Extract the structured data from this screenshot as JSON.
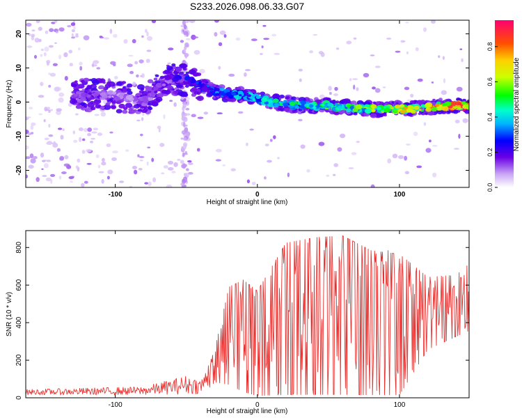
{
  "title": "S233.2026.098.06.33.G07",
  "chart_data": [
    {
      "type": "heatmap",
      "xlabel": "Height of straight line (km)",
      "ylabel": "Frequency (Hz)",
      "xlim": [
        -163,
        149
      ],
      "ylim": [
        -25,
        24
      ],
      "xticks": [
        -100,
        0,
        100
      ],
      "xtick_labels": [
        "-100",
        "0",
        "100"
      ],
      "yticks": [
        -20,
        -10,
        0,
        10,
        20
      ],
      "ytick_labels": [
        "-20",
        "-10",
        "0",
        "10",
        "20"
      ],
      "ridge": {
        "x": [
          -120,
          -100,
          -80,
          -62,
          -46,
          -30,
          -10,
          10,
          30,
          50,
          70,
          90,
          110,
          130,
          149
        ],
        "y": [
          2,
          2,
          0,
          7,
          6,
          3,
          2,
          0,
          -1,
          -1,
          -2,
          -2,
          -2,
          -1,
          -1
        ],
        "amplitude": [
          0.2,
          0.15,
          0.15,
          0.2,
          0.3,
          0.35,
          0.4,
          0.5,
          0.5,
          0.55,
          0.6,
          0.7,
          0.8,
          0.85,
          0.9
        ]
      },
      "colorbar": {
        "label": "Normalized spectral amplitude",
        "range": [
          0.0,
          0.95
        ],
        "ticks": [
          0.0,
          0.2,
          0.4,
          0.6,
          0.8
        ],
        "tick_labels": [
          "0.0",
          "0.2",
          "0.4",
          "0.6",
          "0.8"
        ]
      }
    },
    {
      "type": "line",
      "xlabel": "Height of straight line (km)",
      "ylabel": "SNR (10 * v/v)",
      "xlim": [
        -163,
        149
      ],
      "ylim": [
        0,
        890
      ],
      "xticks": [
        -100,
        0,
        100
      ],
      "xtick_labels": [
        "-100",
        "0",
        "100"
      ],
      "yticks": [
        0,
        200,
        400,
        600,
        800
      ],
      "ytick_labels": [
        "0",
        "200",
        "400",
        "600",
        "800"
      ],
      "series": [
        {
          "name": "SNR",
          "color": "#e8302e",
          "x_start": -163,
          "x_step": 0.5,
          "envelope": {
            "x": [
              -163,
              -80,
              -50,
              -40,
              -34,
              -30,
              -20,
              -10,
              0,
              20,
              40,
              60,
              80,
              100,
              120,
              140,
              149
            ],
            "min": [
              15,
              15,
              20,
              20,
              50,
              80,
              60,
              20,
              0,
              0,
              0,
              0,
              0,
              0,
              250,
              320,
              350
            ],
            "max": [
              45,
              60,
              120,
              100,
              180,
              260,
              600,
              640,
              580,
              840,
              870,
              880,
              800,
              780,
              650,
              660,
              720
            ]
          }
        }
      ]
    }
  ]
}
